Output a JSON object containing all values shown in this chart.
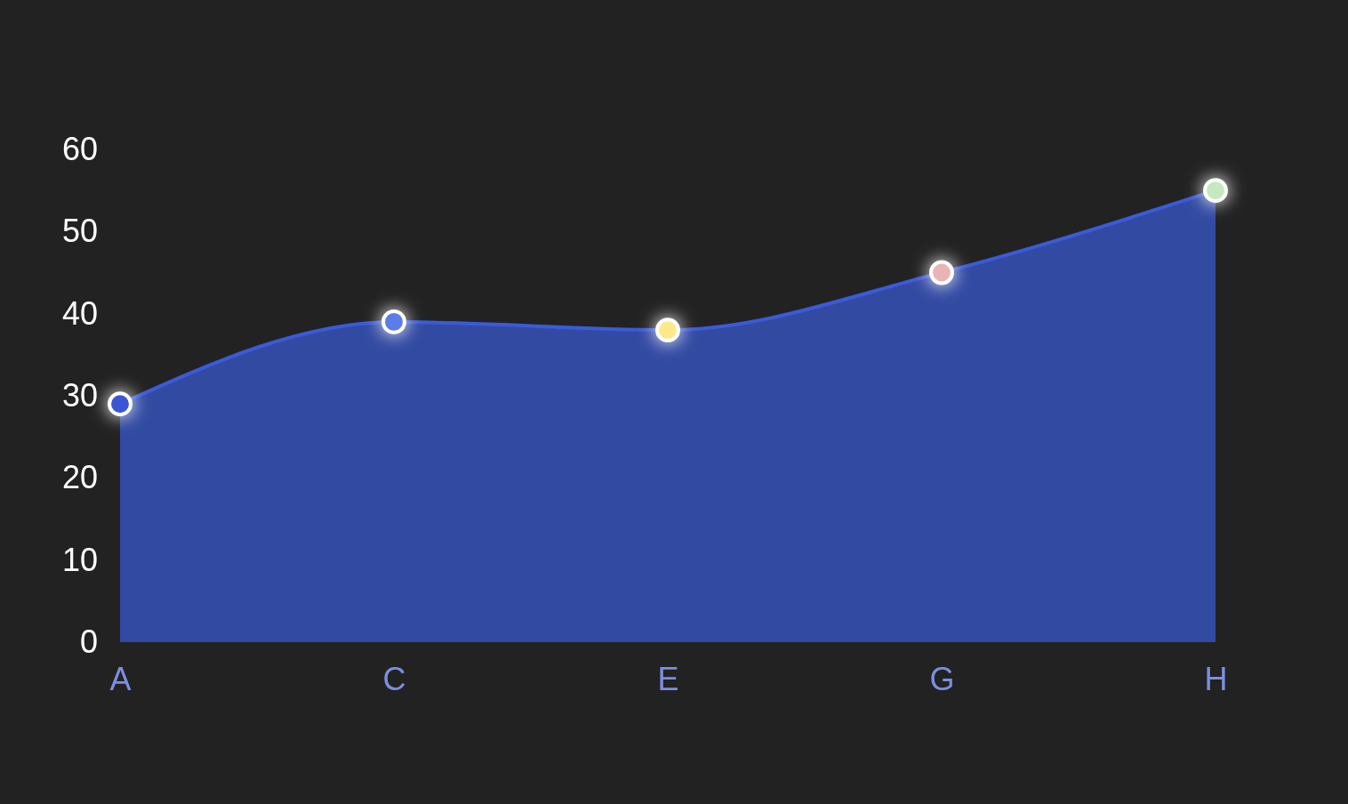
{
  "chart_data": {
    "type": "area",
    "categories": [
      "A",
      "C",
      "E",
      "G",
      "H"
    ],
    "series": [
      {
        "color": "#3a5bd9",
        "colors": [
          "#3a56d4",
          "#5b7be8",
          "#fde98a",
          "#e8b4b4",
          "#c4e8c0"
        ],
        "values": [
          29,
          39,
          38,
          45,
          55
        ]
      }
    ],
    "ylim": [
      0,
      60
    ],
    "yticks": [
      0,
      10,
      20,
      30,
      40,
      50,
      60
    ],
    "grid": false,
    "marker": "circle",
    "line_style": "solid"
  }
}
